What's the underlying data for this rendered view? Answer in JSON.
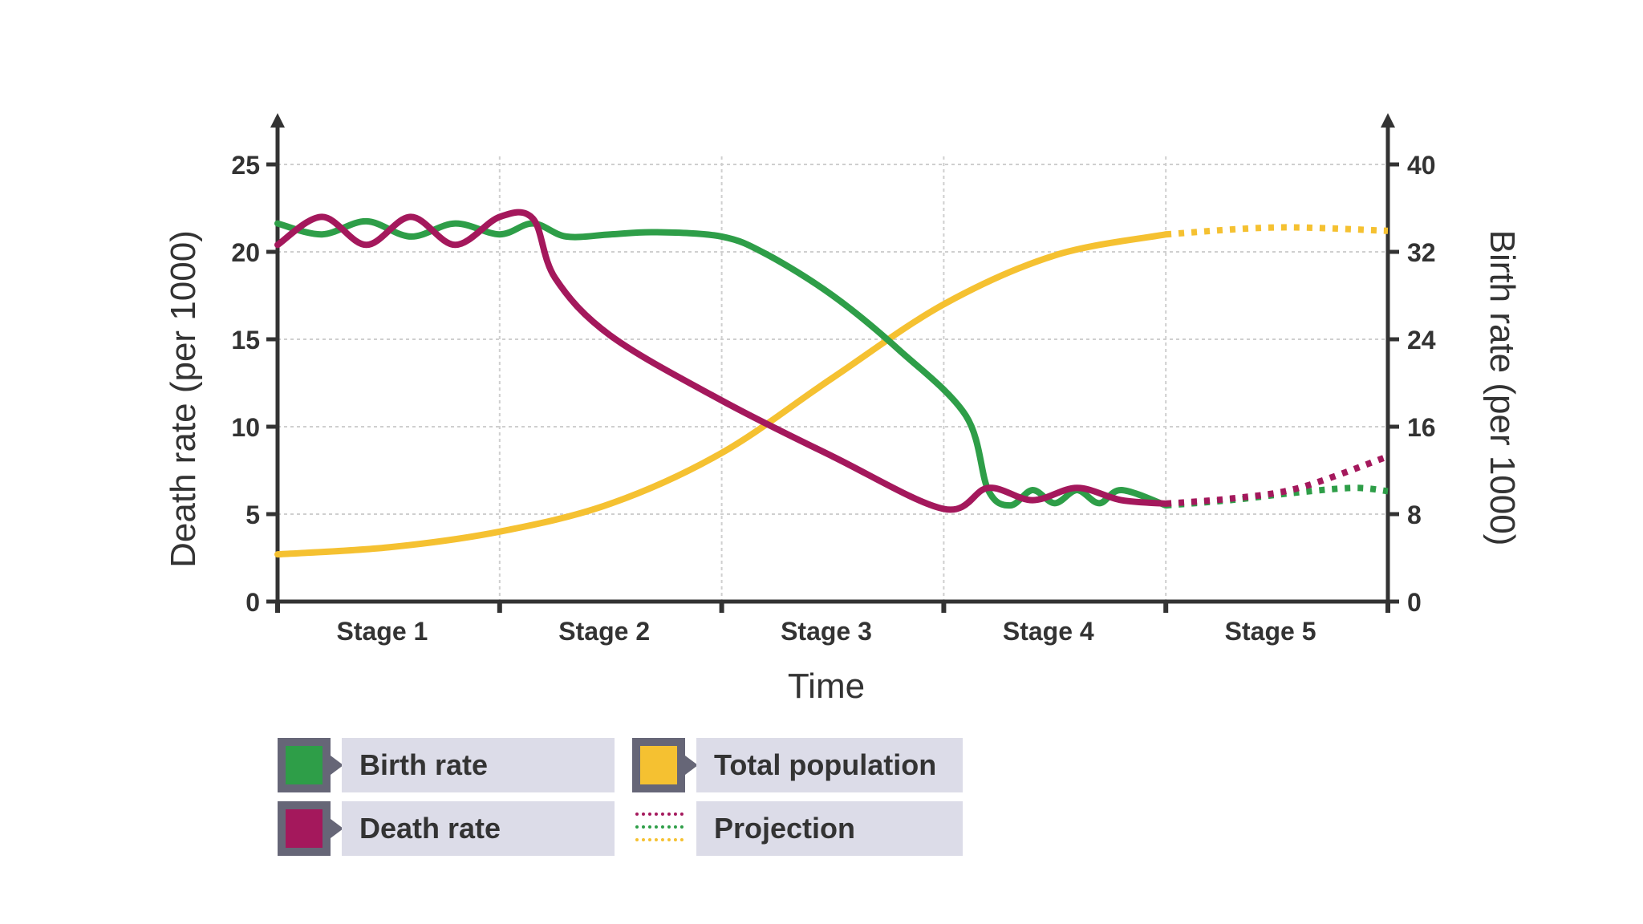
{
  "chart_data": {
    "type": "line",
    "categories": [
      "Stage 1",
      "Stage 2",
      "Stage 3",
      "Stage 4",
      "Stage 5"
    ],
    "xlabel": "Time",
    "ylabel_left": "Death rate (per 1000)",
    "ylabel_right": "Birth rate (per 1000)",
    "ylim_left": [
      0,
      25
    ],
    "ylim_right": [
      0,
      40
    ],
    "yticks_left": [
      "0",
      "5",
      "10",
      "15",
      "20",
      "25"
    ],
    "yticks_right": [
      "0",
      "8",
      "16",
      "24",
      "32",
      "40"
    ],
    "grid": true,
    "x_range": [
      0,
      5
    ],
    "series": [
      {
        "name": "Birth rate",
        "axis": "right",
        "color": "#2e9e48",
        "values": [
          [
            0,
            34.6
          ],
          [
            0.2,
            33.6
          ],
          [
            0.4,
            34.8
          ],
          [
            0.6,
            33.4
          ],
          [
            0.8,
            34.6
          ],
          [
            1.0,
            33.6
          ],
          [
            1.15,
            34.6
          ],
          [
            1.3,
            33.4
          ],
          [
            1.5,
            33.6
          ],
          [
            1.7,
            33.8
          ],
          [
            2.0,
            33.4
          ],
          [
            2.2,
            31.8
          ],
          [
            2.5,
            28.0
          ],
          [
            2.8,
            23.0
          ],
          [
            3.1,
            17.0
          ],
          [
            3.2,
            10.2
          ],
          [
            3.3,
            8.8
          ],
          [
            3.4,
            10.2
          ],
          [
            3.5,
            9.0
          ],
          [
            3.6,
            10.2
          ],
          [
            3.7,
            9.0
          ],
          [
            3.8,
            10.2
          ],
          [
            4.0,
            8.8
          ]
        ],
        "projection": [
          [
            4.0,
            8.8
          ],
          [
            4.3,
            9.3
          ],
          [
            4.6,
            10.0
          ],
          [
            4.85,
            10.4
          ],
          [
            5.0,
            10.1
          ]
        ]
      },
      {
        "name": "Death rate",
        "axis": "left",
        "color": "#a4185c",
        "values": [
          [
            0,
            20.4
          ],
          [
            0.2,
            22.0
          ],
          [
            0.4,
            20.4
          ],
          [
            0.6,
            22.0
          ],
          [
            0.8,
            20.4
          ],
          [
            1.0,
            22.0
          ],
          [
            1.15,
            21.9
          ],
          [
            1.25,
            18.5
          ],
          [
            1.5,
            15.2
          ],
          [
            2.0,
            11.5
          ],
          [
            2.5,
            8.3
          ],
          [
            3.0,
            5.3
          ],
          [
            3.2,
            6.5
          ],
          [
            3.4,
            5.8
          ],
          [
            3.6,
            6.5
          ],
          [
            3.8,
            5.8
          ],
          [
            4.0,
            5.6
          ]
        ],
        "projection": [
          [
            4.0,
            5.6
          ],
          [
            4.3,
            5.9
          ],
          [
            4.6,
            6.5
          ],
          [
            5.0,
            8.3
          ]
        ]
      },
      {
        "name": "Total population",
        "color": "#f5c131",
        "values": [
          [
            0,
            2.7
          ],
          [
            0.5,
            3.1
          ],
          [
            1.0,
            4.0
          ],
          [
            1.5,
            5.6
          ],
          [
            2.0,
            8.5
          ],
          [
            2.5,
            12.8
          ],
          [
            3.0,
            17.0
          ],
          [
            3.5,
            19.8
          ],
          [
            4.0,
            21.0
          ]
        ],
        "projection": [
          [
            4.0,
            21.0
          ],
          [
            4.5,
            21.4
          ],
          [
            5.0,
            21.2
          ]
        ]
      }
    ],
    "legend": {
      "placement": "bottom-left",
      "items": [
        "Birth rate",
        "Death rate",
        "Total population",
        "Projection"
      ]
    }
  },
  "colors": {
    "birth": "#2e9e48",
    "death": "#a4185c",
    "population": "#f5c131",
    "axis": "#333333",
    "grid": "#cfcfcf",
    "legend_box": "#dcdce8",
    "legend_swatch_border": "#666677"
  }
}
